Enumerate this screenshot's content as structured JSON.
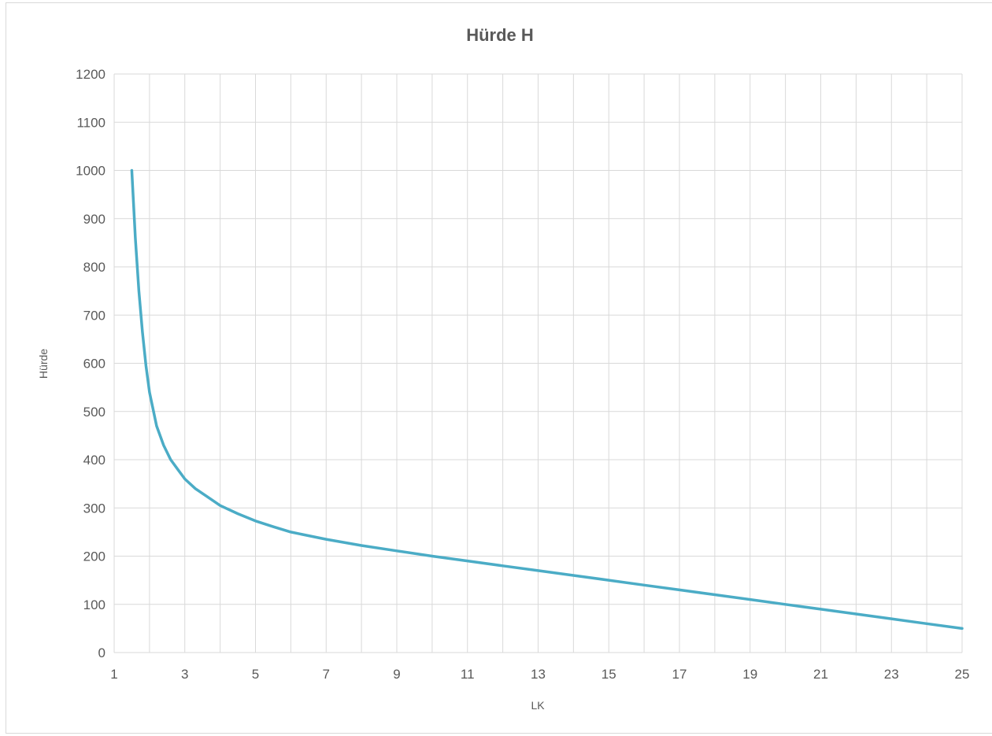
{
  "chart_data": {
    "type": "line",
    "title": "Hürde H",
    "xlabel": "LK",
    "ylabel": "Hürde",
    "xlim": [
      1,
      25
    ],
    "ylim": [
      0,
      1200
    ],
    "x_ticks": [
      1,
      3,
      5,
      7,
      9,
      11,
      13,
      15,
      17,
      19,
      21,
      23,
      25
    ],
    "y_ticks": [
      0,
      100,
      200,
      300,
      400,
      500,
      600,
      700,
      800,
      900,
      1000,
      1100,
      1200
    ],
    "x_minor_grid_step": 1,
    "grid": true,
    "legend": "none",
    "series": [
      {
        "color": "#4bacc6",
        "x": [
          1.5,
          1.6,
          1.7,
          1.8,
          1.9,
          2,
          2.2,
          2.4,
          2.6,
          2.8,
          3,
          3.3,
          3.6,
          4,
          4.5,
          5,
          5.5,
          6,
          7,
          8,
          9,
          10,
          11,
          12,
          13,
          14,
          15,
          16,
          17,
          18,
          19,
          20,
          21,
          22,
          23,
          24,
          25
        ],
        "y": [
          1000,
          860,
          750,
          665,
          595,
          540,
          470,
          430,
          400,
          380,
          360,
          340,
          325,
          305,
          288,
          273,
          261,
          250,
          235,
          222,
          211,
          200,
          190,
          180,
          170,
          160,
          150,
          140,
          130,
          120,
          110,
          100,
          90,
          80,
          70,
          60,
          50
        ]
      }
    ]
  }
}
